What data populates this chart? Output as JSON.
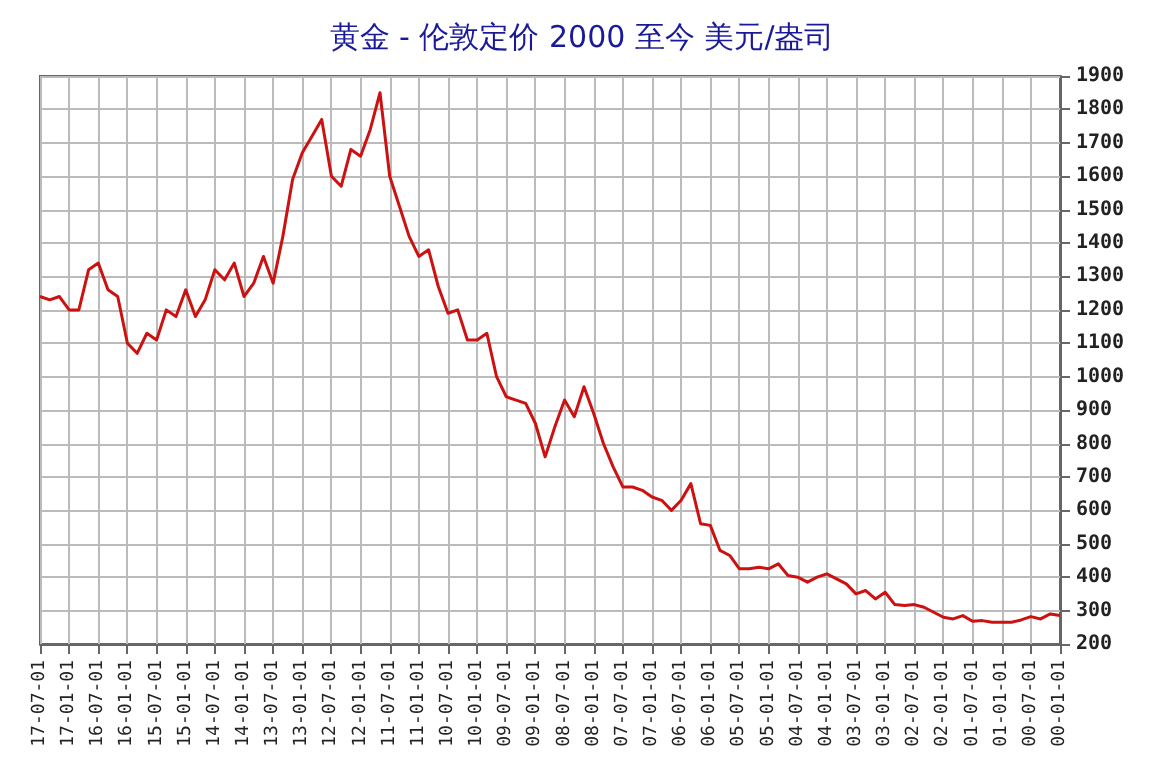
{
  "chart_data": {
    "type": "line",
    "title": "黄金 - 伦敦定价 2000 至今 美元/盎司",
    "categories": [
      "17-07-01",
      null,
      null,
      "17-01-01",
      null,
      null,
      "16-07-01",
      null,
      null,
      "16-01-01",
      null,
      null,
      "15-07-01",
      null,
      null,
      "15-01-01",
      null,
      null,
      "14-07-01",
      null,
      null,
      "14-01-01",
      null,
      null,
      "13-07-01",
      null,
      null,
      "13-01-01",
      null,
      null,
      "12-07-01",
      null,
      null,
      "12-01-01",
      null,
      null,
      "11-07-01",
      null,
      null,
      "11-01-01",
      null,
      null,
      "10-07-01",
      null,
      null,
      "10-01-01",
      null,
      null,
      "09-07-01",
      null,
      null,
      "09-01-01",
      null,
      null,
      "08-07-01",
      null,
      null,
      "08-01-01",
      null,
      null,
      "07-07-01",
      null,
      null,
      "07-01-01",
      null,
      null,
      "06-07-01",
      null,
      null,
      "06-01-01",
      null,
      null,
      "05-07-01",
      null,
      null,
      "05-01-01",
      null,
      null,
      "04-07-01",
      null,
      null,
      "04-01-01",
      null,
      null,
      "03-07-01",
      null,
      null,
      "03-01-01",
      null,
      null,
      "02-07-01",
      null,
      null,
      "02-01-01",
      null,
      null,
      "01-07-01",
      null,
      null,
      "01-01-01",
      null,
      null,
      "00-07-01",
      null,
      null,
      "00-01-01"
    ],
    "series": [
      {
        "color": "#cc1111",
        "values": [
          1240,
          1230,
          1240,
          1200,
          1200,
          1320,
          1340,
          1260,
          1240,
          1100,
          1070,
          1130,
          1110,
          1200,
          1180,
          1260,
          1180,
          1230,
          1320,
          1290,
          1340,
          1240,
          1280,
          1360,
          1280,
          1420,
          1590,
          1670,
          1720,
          1770,
          1600,
          1570,
          1680,
          1660,
          1740,
          1850,
          1600,
          1510,
          1420,
          1360,
          1380,
          1270,
          1190,
          1200,
          1110,
          1110,
          1130,
          1000,
          940,
          930,
          920,
          860,
          760,
          850,
          930,
          880,
          970,
          890,
          800,
          730,
          670,
          670,
          660,
          640,
          630,
          600,
          630,
          680,
          560,
          555,
          480,
          465,
          425,
          425,
          430,
          425,
          440,
          405,
          400,
          385,
          400,
          410,
          395,
          380,
          350,
          360,
          335,
          355,
          318,
          315,
          318,
          310,
          295,
          280,
          275,
          285,
          268,
          270,
          265,
          265,
          265,
          272,
          282,
          275,
          290,
          285
        ]
      }
    ],
    "ylim": [
      200,
      1900
    ],
    "yticks": [
      200,
      300,
      400,
      500,
      600,
      700,
      800,
      900,
      1000,
      1100,
      1200,
      1300,
      1400,
      1500,
      1600,
      1700,
      1800,
      1900
    ],
    "grid": true,
    "marker": "none",
    "line_style": "solid"
  }
}
